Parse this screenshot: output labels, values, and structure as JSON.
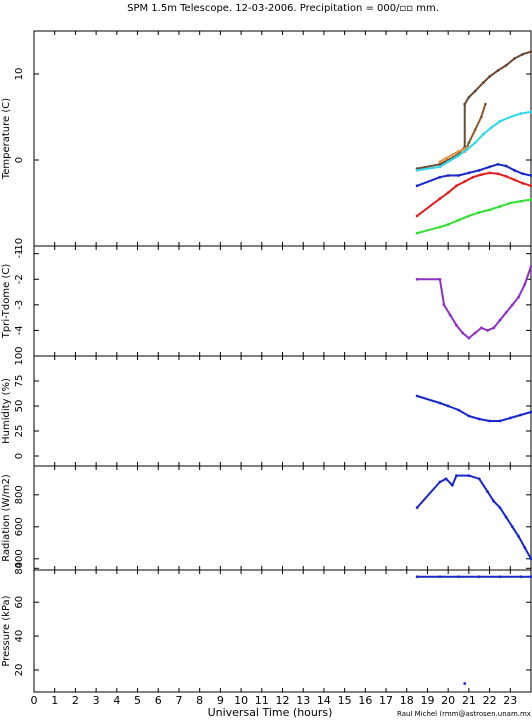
{
  "title": "SPM 1.5m Telescope. 12-03-2006. Precipitation = 000/▫▫ mm.",
  "xlabel": "Universal Time (hours)",
  "credit": "Raul Michel (rmm@astrosen.unam.mx)",
  "chart_data": [
    {
      "type": "scatter",
      "ylabel": "Temperature (C)",
      "xlim": [
        0,
        24
      ],
      "ylim": [
        -10,
        15
      ],
      "yticks": [
        10,
        0,
        -10
      ],
      "series": [
        {
          "color": "#6b4a33",
          "points": [
            [
              18.5,
              -1
            ],
            [
              19.6,
              -0.5
            ],
            [
              20,
              0
            ],
            [
              20.4,
              0.5
            ],
            [
              20.8,
              1.5
            ],
            [
              20.8,
              6.5
            ],
            [
              21,
              7.3
            ],
            [
              21.3,
              8
            ],
            [
              21.7,
              9
            ],
            [
              22,
              9.7
            ],
            [
              22.4,
              10.4
            ],
            [
              22.8,
              11
            ],
            [
              23.2,
              11.8
            ],
            [
              23.6,
              12.3
            ],
            [
              24,
              12.6
            ]
          ]
        },
        {
          "color": "#8a5a2e",
          "points": [
            [
              20.8,
              1
            ],
            [
              21,
              2
            ],
            [
              21.3,
              3.5
            ],
            [
              21.6,
              5
            ],
            [
              21.8,
              6.5
            ]
          ]
        },
        {
          "color": "#e8903a",
          "points": [
            [
              19.6,
              -0.2
            ],
            [
              19.9,
              0.2
            ],
            [
              20.2,
              0.6
            ],
            [
              20.5,
              1
            ],
            [
              20.8,
              1.3
            ],
            [
              21,
              1.5
            ]
          ]
        },
        {
          "color": "#30d8e8",
          "points": [
            [
              18.5,
              -1.2
            ],
            [
              19.6,
              -0.8
            ],
            [
              20,
              -0.2
            ],
            [
              20.5,
              0.5
            ],
            [
              20.9,
              1.2
            ],
            [
              21.3,
              2
            ],
            [
              21.7,
              3
            ],
            [
              22.1,
              3.8
            ],
            [
              22.5,
              4.5
            ],
            [
              23,
              5
            ],
            [
              23.5,
              5.4
            ],
            [
              24,
              5.6
            ]
          ]
        },
        {
          "color": "#1a28c8",
          "points": [
            [
              18.5,
              -3
            ],
            [
              19.6,
              -2
            ],
            [
              20,
              -1.8
            ],
            [
              20.5,
              -1.8
            ],
            [
              21,
              -1.5
            ],
            [
              21.5,
              -1.2
            ],
            [
              22,
              -0.8
            ],
            [
              22.4,
              -0.5
            ],
            [
              22.8,
              -0.7
            ],
            [
              23.2,
              -1.2
            ],
            [
              23.6,
              -1.6
            ],
            [
              24,
              -1.8
            ]
          ]
        },
        {
          "color": "#e02020",
          "points": [
            [
              18.5,
              -6.5
            ],
            [
              19.6,
              -4.5
            ],
            [
              20,
              -3.8
            ],
            [
              20.4,
              -3
            ],
            [
              20.8,
              -2.5
            ],
            [
              21.2,
              -2
            ],
            [
              21.6,
              -1.7
            ],
            [
              22,
              -1.5
            ],
            [
              22.4,
              -1.6
            ],
            [
              22.8,
              -1.9
            ],
            [
              23.2,
              -2.3
            ],
            [
              23.6,
              -2.7
            ],
            [
              24,
              -3
            ]
          ]
        },
        {
          "color": "#30e030",
          "points": [
            [
              18.5,
              -8.5
            ],
            [
              19.6,
              -7.8
            ],
            [
              20,
              -7.5
            ],
            [
              20.5,
              -7
            ],
            [
              21,
              -6.5
            ],
            [
              21.5,
              -6.1
            ],
            [
              22,
              -5.8
            ],
            [
              22.5,
              -5.4
            ],
            [
              23,
              -5
            ],
            [
              23.5,
              -4.8
            ],
            [
              24,
              -4.6
            ]
          ]
        }
      ]
    },
    {
      "type": "scatter",
      "ylabel": "Tpri-Tdome (C)",
      "xlim": [
        0,
        24
      ],
      "ylim": [
        -5,
        -0.7
      ],
      "yticks": [
        -1,
        -2,
        -3,
        -4
      ],
      "series": [
        {
          "color": "#9030c8",
          "points": [
            [
              18.5,
              -2
            ],
            [
              19.6,
              -2
            ],
            [
              19.8,
              -3
            ],
            [
              20.1,
              -3.4
            ],
            [
              20.4,
              -3.8
            ],
            [
              20.7,
              -4.1
            ],
            [
              21,
              -4.3
            ],
            [
              21.3,
              -4.1
            ],
            [
              21.6,
              -3.9
            ],
            [
              21.9,
              -4
            ],
            [
              22.2,
              -3.9
            ],
            [
              22.5,
              -3.6
            ],
            [
              22.8,
              -3.3
            ],
            [
              23.1,
              -3
            ],
            [
              23.4,
              -2.7
            ],
            [
              23.7,
              -2.2
            ],
            [
              24,
              -1.5
            ]
          ]
        }
      ]
    },
    {
      "type": "scatter",
      "ylabel": "Humidity (%)",
      "xlim": [
        0,
        24
      ],
      "ylim": [
        -10,
        100
      ],
      "yticks": [
        100,
        75,
        50,
        25,
        0
      ],
      "series": [
        {
          "color": "#1a28c8",
          "points": [
            [
              18.5,
              60
            ],
            [
              19.6,
              53
            ],
            [
              20,
              50
            ],
            [
              20.5,
              46
            ],
            [
              21,
              40
            ],
            [
              21.5,
              37
            ],
            [
              22,
              35
            ],
            [
              22.5,
              35
            ],
            [
              23,
              38
            ],
            [
              23.5,
              41
            ],
            [
              24,
              44
            ]
          ]
        }
      ]
    },
    {
      "type": "scatter",
      "ylabel": "Radiation (W/m2)",
      "xlim": [
        0,
        24
      ],
      "ylim": [
        330,
        980
      ],
      "yticks": [
        800,
        600,
        400
      ],
      "series": [
        {
          "color": "#1a28c8",
          "points": [
            [
              18.5,
              720
            ],
            [
              19.6,
              880
            ],
            [
              19.9,
              900
            ],
            [
              20.2,
              860
            ],
            [
              20.4,
              920
            ],
            [
              21,
              920
            ],
            [
              21.5,
              900
            ],
            [
              21.9,
              820
            ],
            [
              22.2,
              760
            ],
            [
              22.5,
              720
            ],
            [
              22.8,
              660
            ],
            [
              23.1,
              600
            ],
            [
              23.4,
              540
            ],
            [
              23.7,
              470
            ],
            [
              24,
              400
            ]
          ]
        }
      ]
    },
    {
      "type": "scatter",
      "ylabel": "Pressure (kPa)",
      "xlim": [
        0,
        24
      ],
      "ylim": [
        7,
        79
      ],
      "yticks": [
        80,
        60,
        40,
        20
      ],
      "series": [
        {
          "color": "#1a28c8",
          "points": [
            [
              18.5,
              75
            ],
            [
              19.6,
              75
            ],
            [
              20.5,
              75
            ],
            [
              21.5,
              75
            ],
            [
              22.5,
              75
            ],
            [
              23.5,
              75
            ],
            [
              24,
              75
            ],
            [
              20.8,
              12
            ]
          ]
        }
      ]
    }
  ],
  "xticks": [
    0,
    1,
    2,
    3,
    4,
    5,
    6,
    7,
    8,
    9,
    10,
    11,
    12,
    13,
    14,
    15,
    16,
    17,
    18,
    19,
    20,
    21,
    22,
    23
  ]
}
